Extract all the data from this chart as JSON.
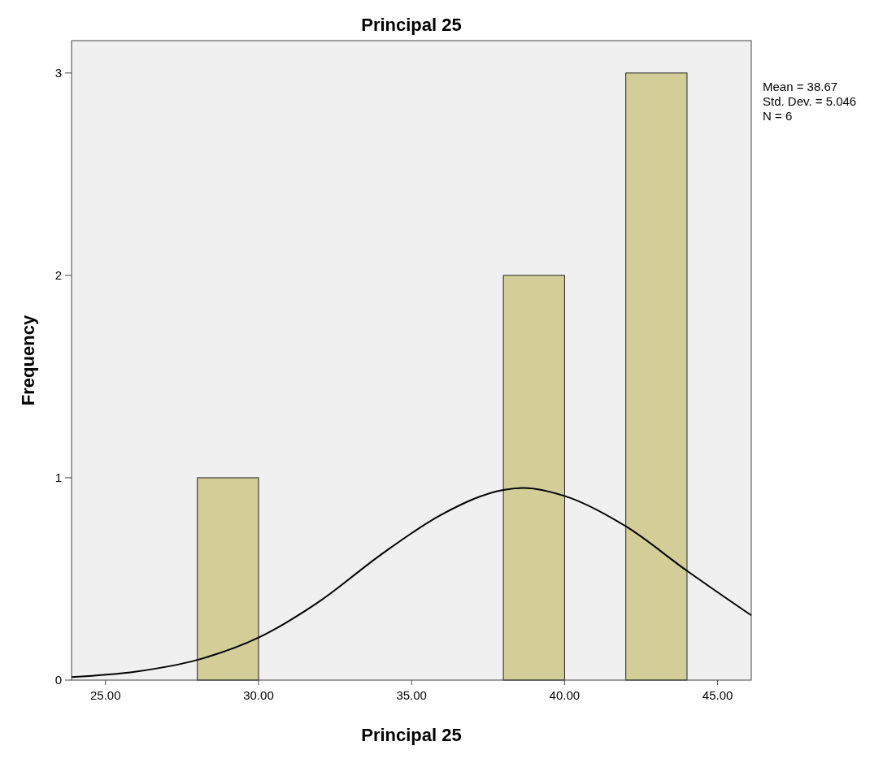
{
  "chart_data": {
    "type": "histogram",
    "title": "Principal 25",
    "xlabel": "Principal 25",
    "ylabel": "Frequency",
    "bins": [
      28,
      30,
      32,
      34,
      36,
      38,
      40,
      42,
      44
    ],
    "values": [
      1,
      0,
      0,
      0,
      0,
      2,
      0,
      3
    ],
    "color": "#d3ce97",
    "series": [
      {
        "type": "line",
        "color": "#000000",
        "x": [
          23.89,
          26,
          28,
          30,
          32,
          34,
          36,
          38,
          38.67,
          40,
          42,
          44,
          46.1
        ],
        "values": [
          0.015,
          0.042,
          0.1,
          0.21,
          0.39,
          0.62,
          0.82,
          0.94,
          0.95,
          0.91,
          0.76,
          0.54,
          0.32
        ]
      }
    ],
    "xlim": [
      23.89,
      46.1
    ],
    "ylim": [
      0,
      3.16
    ],
    "xticks": [
      {
        "value": 25,
        "label": "25.00"
      },
      {
        "value": 30,
        "label": "30.00"
      },
      {
        "value": 35,
        "label": "35.00"
      },
      {
        "value": 40,
        "label": "40.00"
      },
      {
        "value": 45,
        "label": "45.00"
      }
    ],
    "yticks": [
      0,
      1,
      2,
      3
    ],
    "grid": false,
    "annotations": [
      "Mean = 38.67",
      "Std. Dev. = 5.046",
      "N = 6"
    ]
  }
}
